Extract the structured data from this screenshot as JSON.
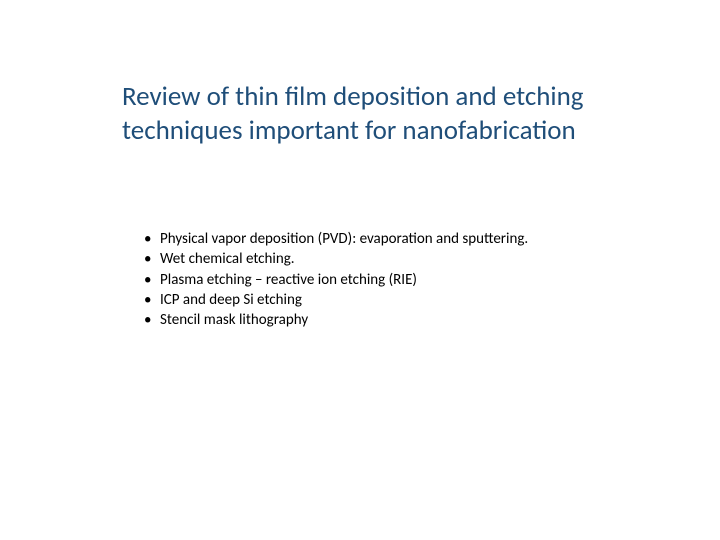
{
  "title": {
    "text": "Review of thin film deposition and etching techniques important for nanofabrication",
    "color": "#1f4e79",
    "fontsize": 27
  },
  "bullets": {
    "items": [
      "Physical vapor deposition (PVD): evaporation and sputtering.",
      "Wet chemical etching.",
      "Plasma etching – reactive ion etching (RIE)",
      "ICP and deep Si etching",
      "Stencil mask lithography"
    ],
    "fontsize": 15,
    "color": "#000000"
  },
  "background_color": "#ffffff"
}
